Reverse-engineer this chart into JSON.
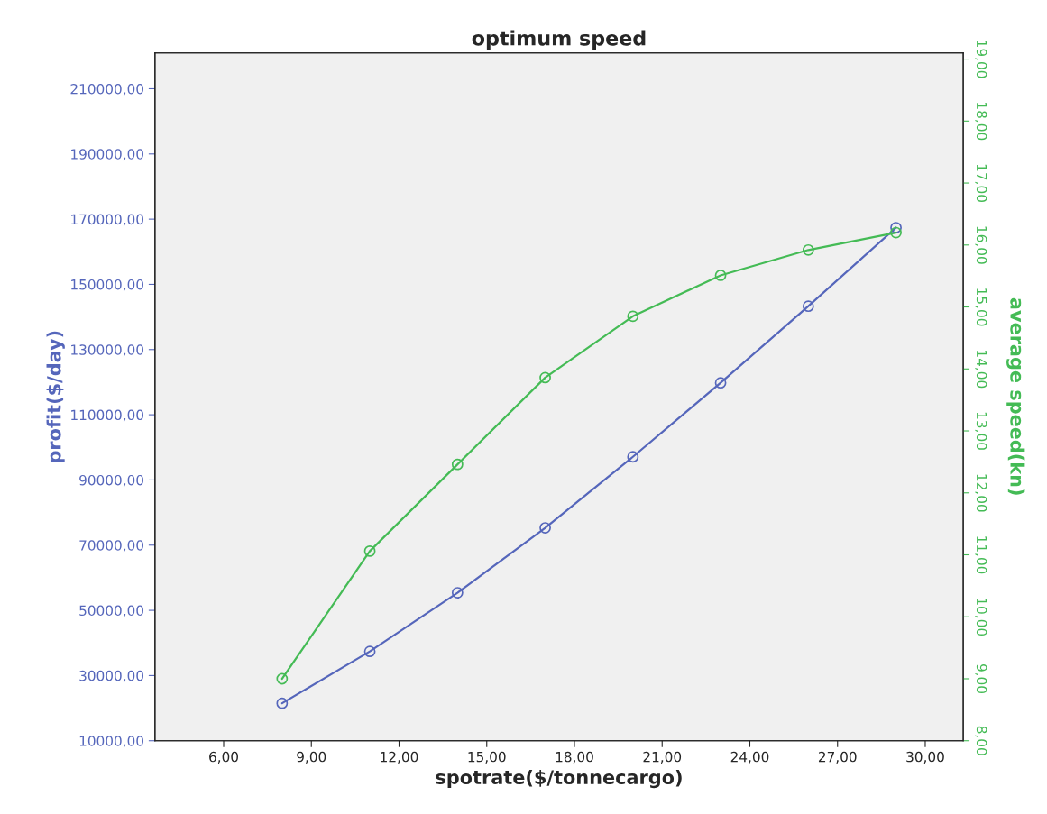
{
  "chart_data": {
    "type": "line",
    "title": "optimum speed",
    "xlabel": "spotrate($/tonnecargo)",
    "ylabel": "profit($/day)",
    "y2label": "average speed(kn)",
    "x": [
      8,
      11,
      14,
      17,
      20,
      23,
      26,
      29
    ],
    "series": [
      {
        "color": "#5566bb",
        "values": [
          21500,
          37400,
          55400,
          75300,
          97100,
          119800,
          143300,
          167400
        ]
      },
      {
        "color": "#44bb55",
        "axis": "y2",
        "values": [
          9.0,
          11.06,
          12.46,
          13.86,
          14.85,
          15.51,
          15.92,
          16.2
        ]
      }
    ],
    "xlim": [
      3.65,
      31.3
    ],
    "xticks": [
      {
        "value": 6,
        "label": "6,00"
      },
      {
        "value": 9,
        "label": "9,00"
      },
      {
        "value": 12,
        "label": "12,00"
      },
      {
        "value": 15,
        "label": "15,00"
      },
      {
        "value": 18,
        "label": "18,00"
      },
      {
        "value": 21,
        "label": "21,00"
      },
      {
        "value": 24,
        "label": "24,00"
      },
      {
        "value": 27,
        "label": "27,00"
      },
      {
        "value": 30,
        "label": "30,00"
      }
    ],
    "ylim": [
      10000,
      221000
    ],
    "yticks": [
      {
        "value": 10000,
        "label": "10000,00"
      },
      {
        "value": 30000,
        "label": "30000,00"
      },
      {
        "value": 50000,
        "label": "50000,00"
      },
      {
        "value": 70000,
        "label": "70000,00"
      },
      {
        "value": 90000,
        "label": "90000,00"
      },
      {
        "value": 110000,
        "label": "110000,00"
      },
      {
        "value": 130000,
        "label": "130000,00"
      },
      {
        "value": 150000,
        "label": "150000,00"
      },
      {
        "value": 170000,
        "label": "170000,00"
      },
      {
        "value": 190000,
        "label": "190000,00"
      },
      {
        "value": 210000,
        "label": "210000,00"
      }
    ],
    "y2lim": [
      8,
      19.1
    ],
    "y2ticks": [
      {
        "value": 8,
        "label": "8,00"
      },
      {
        "value": 9,
        "label": "9,00"
      },
      {
        "value": 10,
        "label": "10,00"
      },
      {
        "value": 11,
        "label": "11,00"
      },
      {
        "value": 12,
        "label": "12,00"
      },
      {
        "value": 13,
        "label": "13,00"
      },
      {
        "value": 14,
        "label": "14,00"
      },
      {
        "value": 15,
        "label": "15,00"
      },
      {
        "value": 16,
        "label": "16,00"
      },
      {
        "value": 17,
        "label": "17,00"
      },
      {
        "value": 18,
        "label": "18,00"
      },
      {
        "value": 19,
        "label": "19,00"
      }
    ],
    "marker": "circle",
    "grid": false,
    "legend": false
  }
}
